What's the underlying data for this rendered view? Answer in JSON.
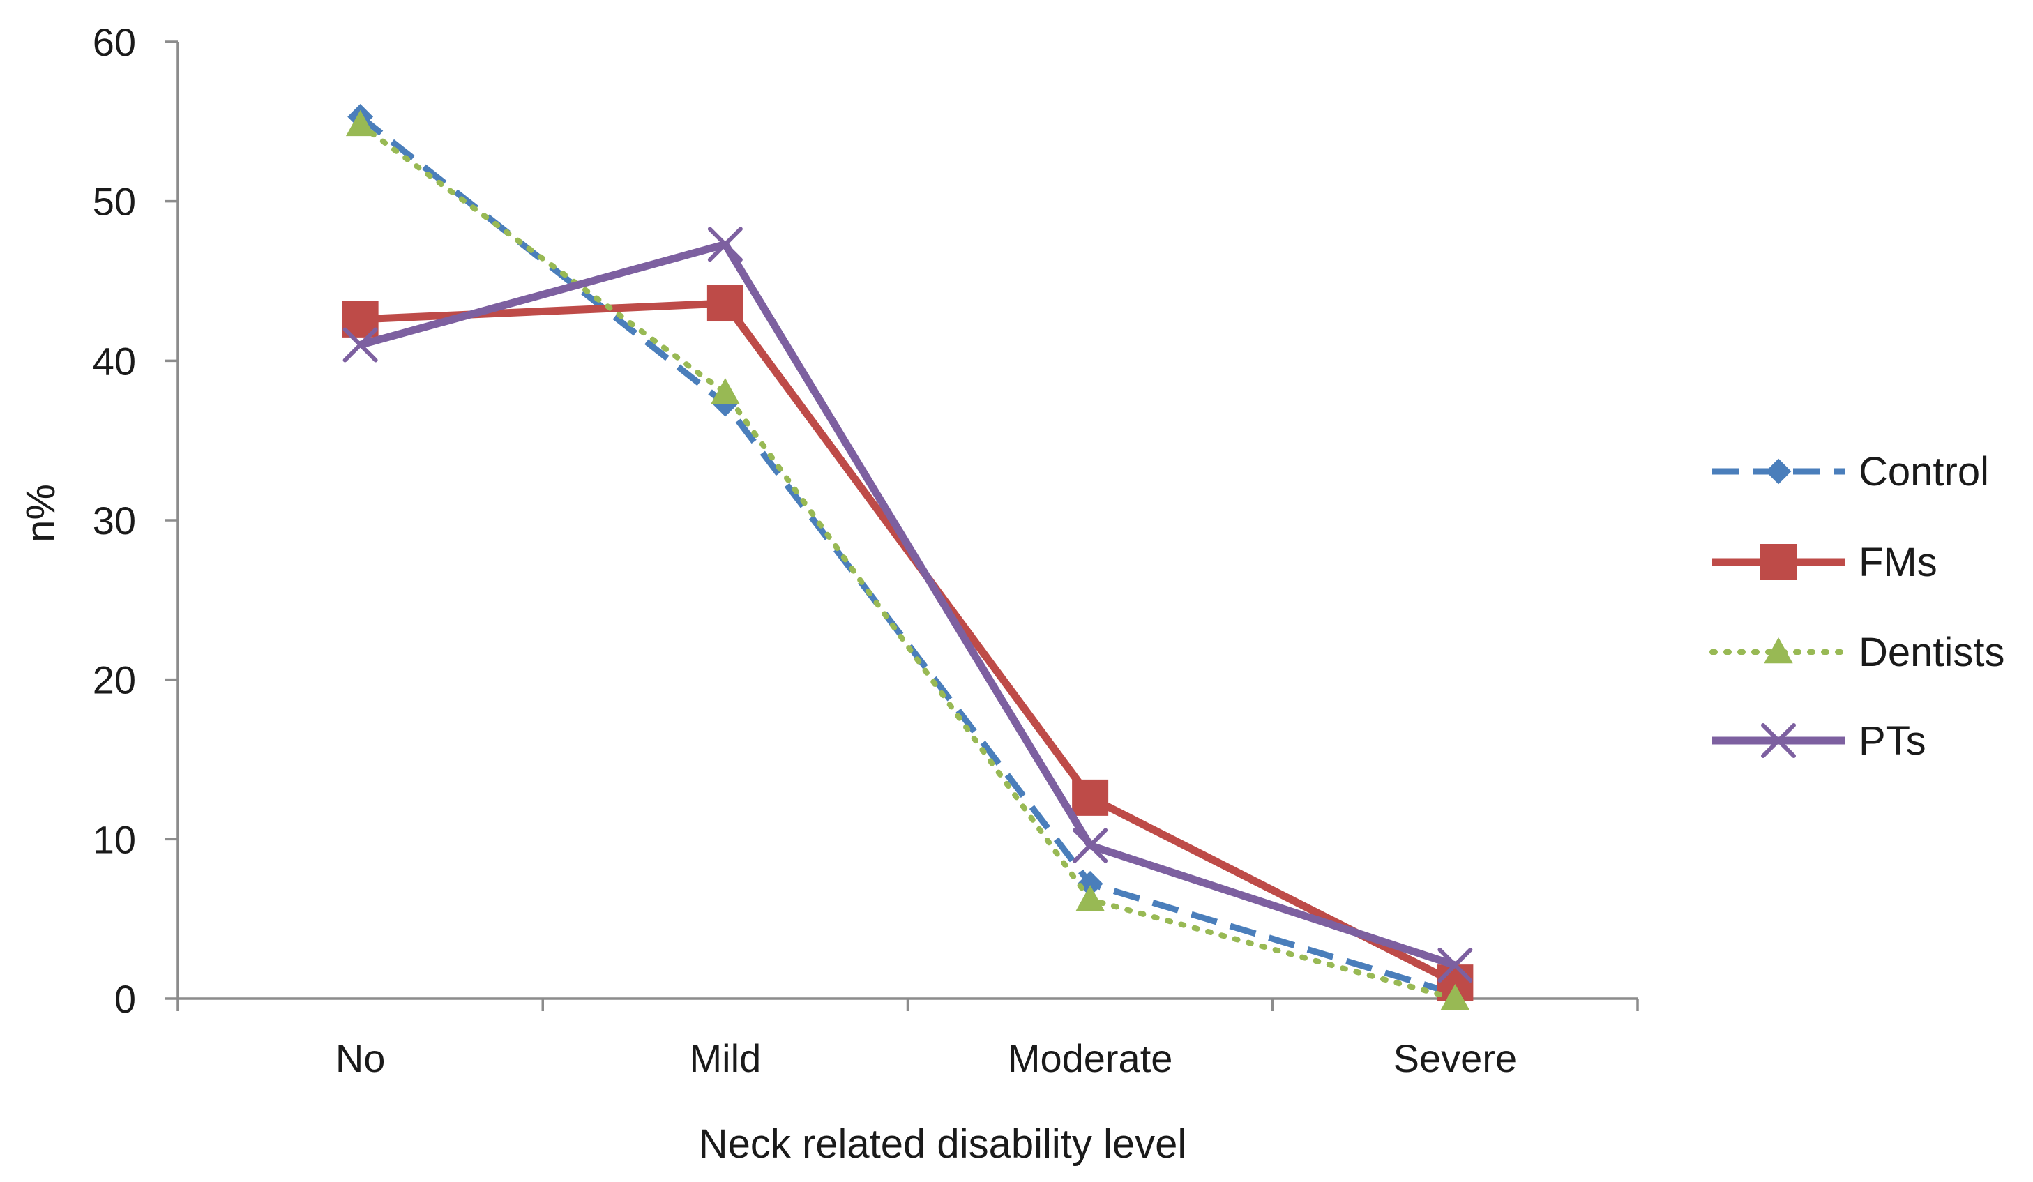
{
  "chart_data": {
    "type": "line",
    "title": "",
    "xlabel": "Neck related disability level",
    "ylabel": "n%",
    "categories": [
      "No",
      "Mild",
      "Moderate",
      "Severe"
    ],
    "ylim": [
      0,
      60
    ],
    "yticks": [
      0,
      10,
      20,
      30,
      40,
      50,
      60
    ],
    "ytick_labels": [
      "0",
      "10",
      "20",
      "30",
      "40",
      "50",
      "60"
    ],
    "grid": false,
    "legend_position": "right",
    "series": [
      {
        "name": "Control",
        "values": [
          55.3,
          37.3,
          7.2,
          0.3
        ],
        "color": "#4a7ebb",
        "line": "dashed",
        "marker": "diamond"
      },
      {
        "name": "FMs",
        "values": [
          42.6,
          43.6,
          12.6,
          1.0
        ],
        "color": "#be4b48",
        "line": "solid",
        "marker": "square"
      },
      {
        "name": "Dentists",
        "values": [
          54.8,
          38.0,
          6.2,
          0.0
        ],
        "color": "#98b954",
        "line": "dotted",
        "marker": "triangle"
      },
      {
        "name": "PTs",
        "values": [
          41.0,
          47.3,
          9.6,
          2.1
        ],
        "color": "#7d60a0",
        "line": "solid",
        "marker": "x"
      }
    ]
  }
}
